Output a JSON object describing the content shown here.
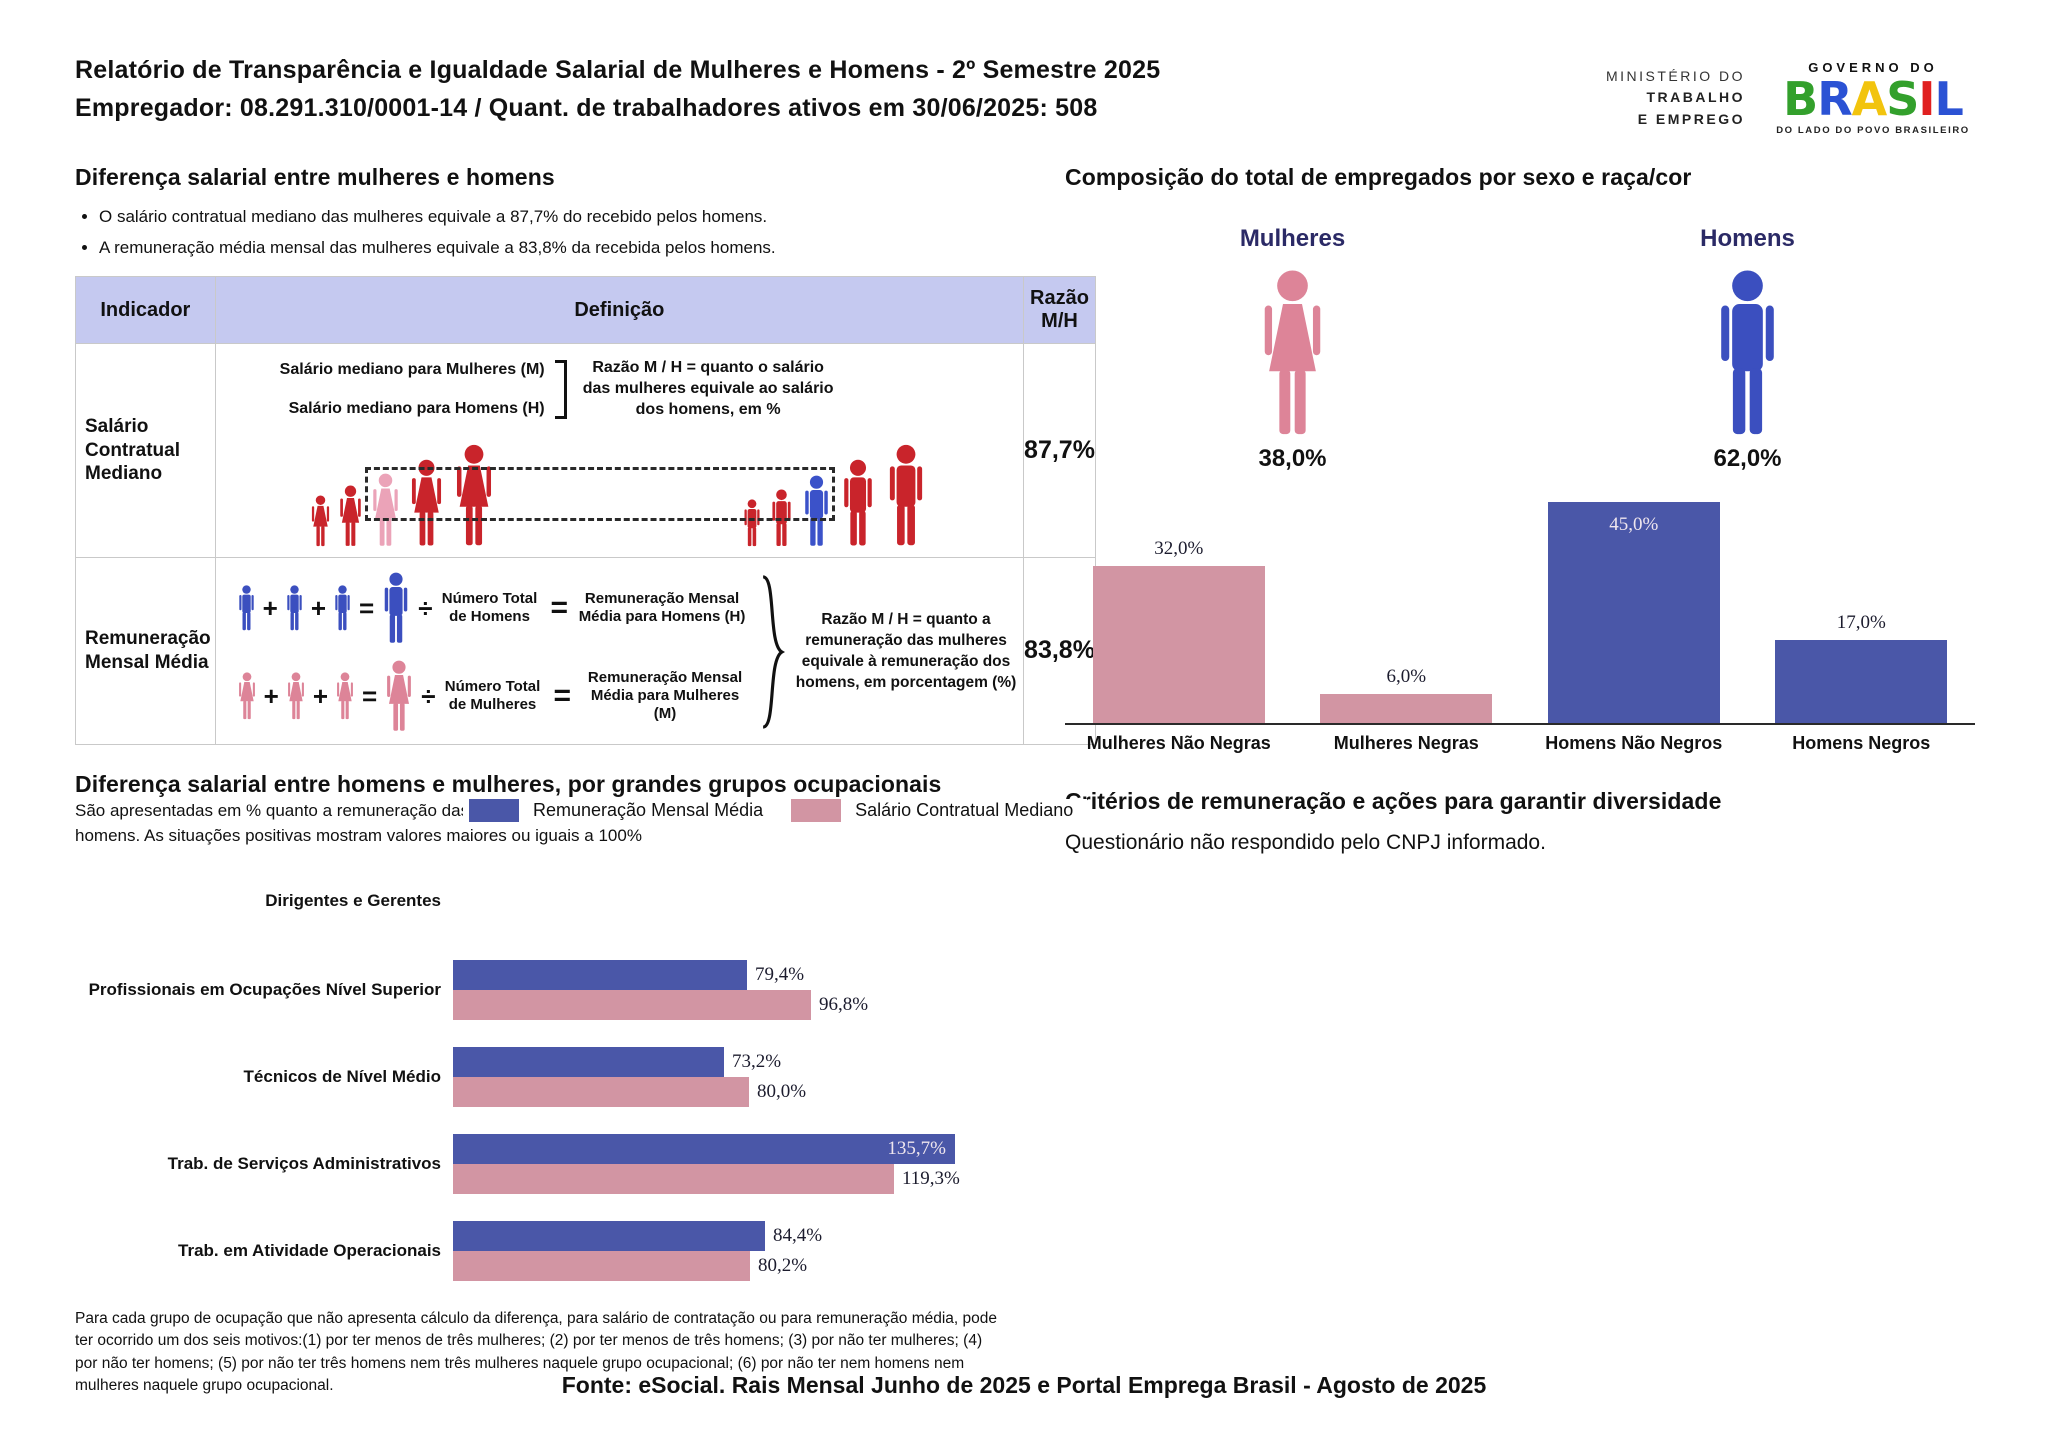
{
  "colors": {
    "figure_red": "#c9242b",
    "figure_pink_highlight": "#eba3b8",
    "figure_blue_highlight": "#3b52c9",
    "woman_pink": "#dd8498",
    "man_blue": "#3b4fbf",
    "bar_blue": "#4a57a8",
    "bar_pink": "#d295a3",
    "navy_label": "#2b2a66",
    "table_header_bg": "#c5c9f0"
  },
  "header": {
    "title_line1": "Relatório de Transparência e Igualdade Salarial de Mulheres e Homens - 2º Semestre 2025",
    "title_line2": "Empregador: 08.291.310/0001-14 / Quant. de trabalhadores ativos em 30/06/2025: 508",
    "ministry": [
      "MINISTÉRIO DO",
      "TRABALHO",
      "E EMPREGO"
    ],
    "gov_logo": {
      "top": "GOVERNO DO",
      "letters": [
        "B",
        "R",
        "A",
        "S",
        "I",
        "L"
      ],
      "bottom": "DO LADO DO POVO BRASILEIRO"
    }
  },
  "salary_gap": {
    "title": "Diferença salarial entre mulheres e homens",
    "bullets": [
      "O salário contratual mediano das mulheres equivale a 87,7% do recebido pelos homens.",
      "A remuneração média mensal das mulheres equivale a 83,8% da recebida pelos homens."
    ],
    "table": {
      "headers": [
        "Indicador",
        "Definição",
        "Razão M/H"
      ],
      "row1": {
        "indicator": "Salário Contratual Mediano",
        "line_women": "Salário mediano para Mulheres (M)",
        "line_men": "Salário mediano para Homens (H)",
        "note": "Razão M / H = quanto o salário das mulheres equivale ao salário dos homens, em %",
        "ratio": "87,7%"
      },
      "row2": {
        "indicator": "Remuneração Mensal Média",
        "ops": {
          "plus": "+",
          "equals": "=",
          "divide": "÷"
        },
        "men": {
          "count_label": "Número Total de Homens",
          "result_label": "Remuneração Mensal Média para Homens (H)"
        },
        "women": {
          "count_label": "Número Total de Mulheres",
          "result_label": "Remuneração Mensal Média para Mulheres (M)"
        },
        "note": "Razão M / H = quanto a remuneração das mulheres equivale à remuneração dos homens, em porcentagem (%)",
        "ratio": "83,8%"
      }
    }
  },
  "occupational": {
    "title": "Diferença salarial entre homens e mulheres, por grandes grupos ocupacionais",
    "subtitle": "São apresentadas em % quanto a remuneração das mulheres vale em relação à dos homens. As situações positivas mostram valores maiores ou iguais a 100%",
    "footnote": "Para cada grupo de ocupação que não apresenta cálculo da diferença, para salário de contratação ou para remuneração média, pode ter ocorrido um dos seis motivos:(1) por ter menos de três mulheres; (2) por ter menos de três homens; (3) por não ter mulheres; (4) por não ter homens; (5) por não ter três homens nem três mulheres naquele grupo ocupacional; (6) por não ter nem homens nem mulheres naquele grupo ocupacional."
  },
  "composition": {
    "title": "Composição do total de empregados por sexo e raça/cor",
    "genders": [
      {
        "label": "Mulheres",
        "value": "38,0%"
      },
      {
        "label": "Homens",
        "value": "62,0%"
      }
    ]
  },
  "criteria": {
    "title": "Critérios de remuneração e ações para garantir diversidade",
    "body": "Questionário não respondido pelo CNPJ informado."
  },
  "footer": "Fonte: eSocial. Rais Mensal Junho de 2025 e Portal Emprega Brasil - Agosto de 2025",
  "chart_data": [
    {
      "id": "composition",
      "type": "bar",
      "title": "Composição do total de empregados por sexo e raça/cor",
      "categories": [
        "Mulheres Não Negras",
        "Mulheres Negras",
        "Homens Não Negros",
        "Homens Negros"
      ],
      "values": [
        32.0,
        6.0,
        45.0,
        17.0
      ],
      "labels": [
        "32,0%",
        "6,0%",
        "45,0%",
        "17,0%"
      ],
      "colors": [
        "#d295a3",
        "#d295a3",
        "#4a57a8",
        "#4a57a8"
      ],
      "label_inside": [
        false,
        false,
        true,
        false
      ],
      "gender_totals": {
        "Mulheres": 38.0,
        "Homens": 62.0
      },
      "ylim": [
        0,
        50
      ],
      "grid": false
    },
    {
      "id": "occupational",
      "type": "bar-horizontal-grouped",
      "title": "Diferença salarial entre homens e mulheres, por grandes grupos ocupacionais",
      "categories": [
        "Dirigentes e Gerentes",
        "Profissionais em Ocupações Nível Superior",
        "Técnicos de Nível Médio",
        "Trab. de Serviços Administrativos",
        "Trab. em Atividade Operacionais"
      ],
      "series": [
        {
          "name": "Remuneração Mensal Média",
          "color": "#4a57a8",
          "values": [
            null,
            79.4,
            73.2,
            135.7,
            84.4
          ],
          "labels": [
            "",
            "79,4%",
            "73,2%",
            "135,7%",
            "84,4%"
          ],
          "label_inside": [
            false,
            false,
            false,
            true,
            false
          ]
        },
        {
          "name": "Salário Contratual Mediano",
          "color": "#d295a3",
          "values": [
            null,
            96.8,
            80.0,
            119.3,
            80.2
          ],
          "labels": [
            "",
            "96,8%",
            "80,0%",
            "119,3%",
            "80,2%"
          ],
          "label_inside": [
            false,
            false,
            false,
            false,
            false
          ]
        }
      ],
      "xlim": [
        0,
        160
      ],
      "legend_position": "top"
    }
  ]
}
